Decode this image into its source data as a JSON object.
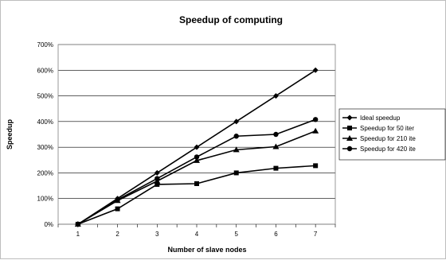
{
  "chart_data": {
    "type": "line",
    "title": "Speedup of computing",
    "xlabel": "Number of slave nodes",
    "ylabel": "Speedup",
    "x": [
      1,
      2,
      3,
      4,
      5,
      6,
      7
    ],
    "ylim": [
      0,
      700
    ],
    "yticks": [
      0,
      100,
      200,
      300,
      400,
      500,
      600,
      700
    ],
    "ytick_labels": [
      "0%",
      "100%",
      "200%",
      "300%",
      "400%",
      "500%",
      "600%",
      "700%"
    ],
    "grid": "horizontal",
    "legend_position": "right",
    "series": [
      {
        "name": "Ideal speedup",
        "marker": "diamond",
        "values": [
          0,
          100,
          200,
          300,
          400,
          500,
          600
        ]
      },
      {
        "name": "Speedup for 50 iter",
        "marker": "square",
        "values": [
          0,
          60,
          155,
          158,
          200,
          218,
          228
        ]
      },
      {
        "name": "Speedup for 210 ite",
        "marker": "triangle",
        "values": [
          0,
          92,
          168,
          248,
          290,
          302,
          363
        ]
      },
      {
        "name": "Speedup for 420 ite",
        "marker": "circle",
        "values": [
          0,
          95,
          178,
          262,
          343,
          350,
          408
        ]
      }
    ]
  }
}
